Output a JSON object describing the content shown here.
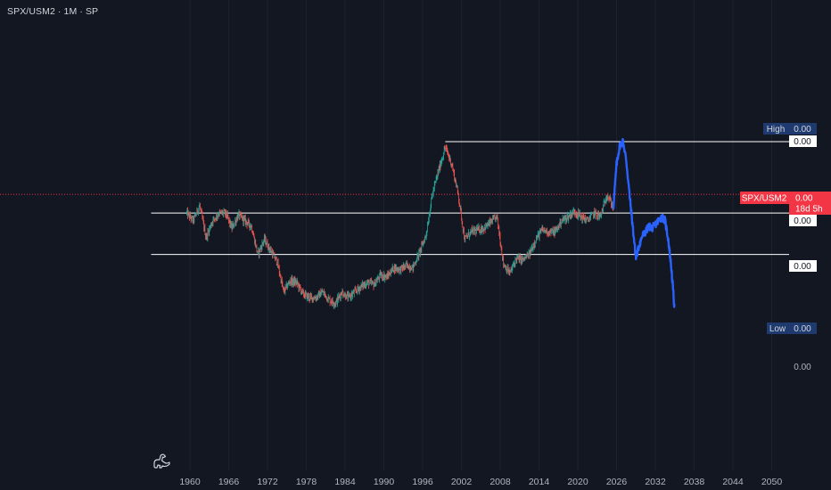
{
  "header": {
    "symbol": "SPX/USM2",
    "interval": "1M",
    "exchange": "SP",
    "title": "SPX/USM2 · 1M · SP"
  },
  "logo_icon": "tradingview-dino-icon",
  "price_axis": {
    "high_label": "High",
    "high_value": "0.00",
    "level_top": "0.00",
    "symbol_tag": "SPX/USM2",
    "symbol_value": "0.00",
    "countdown": "18d 5h",
    "level_mid": "0.00",
    "level_low_line": "0.00",
    "low_label": "Low",
    "low_value": "0.00",
    "bottom_tick": "0.00"
  },
  "colors": {
    "background": "#131722",
    "up": "#26a69a",
    "down": "#ef5350",
    "projection": "#2962ff",
    "level_line": "#ffffff",
    "tag_blue": "#1e3a6e",
    "tag_red": "#f23645"
  },
  "chart_data": {
    "type": "candlestick",
    "x_axis": {
      "ticks": [
        "1960",
        "1966",
        "1972",
        "1978",
        "1984",
        "1990",
        "1996",
        "2002",
        "2008",
        "2014",
        "2020",
        "2026",
        "2032",
        "2038",
        "2044",
        "2050"
      ],
      "range": [
        1955,
        2054
      ]
    },
    "y_range": [
      0,
      1
    ],
    "horizontal_levels": [
      {
        "value": 1.0,
        "start_year": 1999.5,
        "label": "0.00"
      },
      {
        "value": 0.62,
        "start_year": 1954,
        "label": "0.00"
      },
      {
        "value": 0.4,
        "start_year": 1954,
        "label": "0.00"
      }
    ],
    "current_price_level": 0.72,
    "historical_path": [
      [
        1959.5,
        0.62
      ],
      [
        1960.5,
        0.58
      ],
      [
        1961.5,
        0.66
      ],
      [
        1962.5,
        0.49
      ],
      [
        1963.5,
        0.58
      ],
      [
        1964.5,
        0.62
      ],
      [
        1965.5,
        0.62
      ],
      [
        1966.5,
        0.54
      ],
      [
        1967.5,
        0.61
      ],
      [
        1968.5,
        0.58
      ],
      [
        1969.5,
        0.55
      ],
      [
        1970.5,
        0.4
      ],
      [
        1971.5,
        0.48
      ],
      [
        1972.5,
        0.42
      ],
      [
        1973.5,
        0.36
      ],
      [
        1974.5,
        0.2
      ],
      [
        1975.5,
        0.26
      ],
      [
        1976.5,
        0.25
      ],
      [
        1977.5,
        0.19
      ],
      [
        1978.5,
        0.17
      ],
      [
        1979.5,
        0.17
      ],
      [
        1980.5,
        0.2
      ],
      [
        1981.5,
        0.16
      ],
      [
        1982.5,
        0.14
      ],
      [
        1983.5,
        0.2
      ],
      [
        1984.5,
        0.17
      ],
      [
        1985.5,
        0.2
      ],
      [
        1986.5,
        0.23
      ],
      [
        1987.5,
        0.25
      ],
      [
        1988.5,
        0.24
      ],
      [
        1989.5,
        0.29
      ],
      [
        1990.5,
        0.28
      ],
      [
        1991.5,
        0.33
      ],
      [
        1992.5,
        0.32
      ],
      [
        1993.5,
        0.34
      ],
      [
        1994.5,
        0.33
      ],
      [
        1995.5,
        0.41
      ],
      [
        1996.5,
        0.5
      ],
      [
        1997.5,
        0.72
      ],
      [
        1998.5,
        0.85
      ],
      [
        1999.5,
        0.97
      ],
      [
        2000.5,
        0.88
      ],
      [
        2001.5,
        0.72
      ],
      [
        2002.5,
        0.48
      ],
      [
        2003.5,
        0.52
      ],
      [
        2004.5,
        0.53
      ],
      [
        2005.5,
        0.54
      ],
      [
        2006.5,
        0.57
      ],
      [
        2007.5,
        0.6
      ],
      [
        2008.5,
        0.35
      ],
      [
        2009.5,
        0.3
      ],
      [
        2010.5,
        0.38
      ],
      [
        2011.5,
        0.37
      ],
      [
        2012.5,
        0.4
      ],
      [
        2013.5,
        0.48
      ],
      [
        2014.5,
        0.53
      ],
      [
        2015.5,
        0.52
      ],
      [
        2016.5,
        0.52
      ],
      [
        2017.5,
        0.58
      ],
      [
        2018.5,
        0.6
      ],
      [
        2019.5,
        0.63
      ],
      [
        2020.5,
        0.6
      ],
      [
        2021.5,
        0.58
      ],
      [
        2022.5,
        0.62
      ],
      [
        2023.5,
        0.6
      ],
      [
        2024.5,
        0.72
      ],
      [
        2025.5,
        0.65
      ]
    ],
    "projection_path": [
      [
        2025.5,
        0.65
      ],
      [
        2026.0,
        0.88
      ],
      [
        2026.5,
        0.98
      ],
      [
        2027.0,
        1.0
      ],
      [
        2027.5,
        0.9
      ],
      [
        2028.0,
        0.72
      ],
      [
        2028.5,
        0.55
      ],
      [
        2029.0,
        0.38
      ],
      [
        2029.5,
        0.45
      ],
      [
        2030.0,
        0.5
      ],
      [
        2030.5,
        0.52
      ],
      [
        2031.0,
        0.55
      ],
      [
        2031.5,
        0.54
      ],
      [
        2032.0,
        0.56
      ],
      [
        2032.5,
        0.58
      ],
      [
        2033.0,
        0.6
      ],
      [
        2033.5,
        0.58
      ],
      [
        2034.0,
        0.48
      ],
      [
        2034.5,
        0.32
      ],
      [
        2035.0,
        0.1
      ]
    ]
  }
}
